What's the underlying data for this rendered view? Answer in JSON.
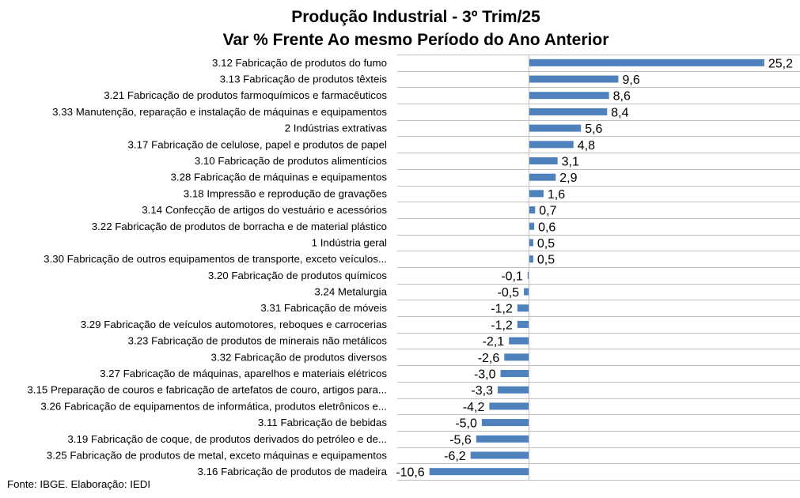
{
  "chart_data": {
    "type": "bar",
    "orientation": "horizontal",
    "title": "Produção Industrial - 3º Trim/25",
    "subtitle": "Var % Frente Ao mesmo Período do Ano Anterior",
    "xlabel": "",
    "ylabel": "",
    "xlim": [
      -10.6,
      25.2
    ],
    "grid": "horizontal category separators",
    "legend": "none",
    "bar_color": "#4F81BD",
    "categories": [
      "3.12 Fabricação de produtos do fumo",
      "3.13 Fabricação de produtos têxteis",
      "3.21 Fabricação de produtos farmoquímicos e farmacêuticos",
      "3.33 Manutenção, reparação e instalação de máquinas e equipamentos",
      "2 Indústrias extrativas",
      "3.17 Fabricação de celulose, papel e produtos de papel",
      "3.10 Fabricação de produtos alimentícios",
      "3.28 Fabricação de máquinas e equipamentos",
      "3.18 Impressão e reprodução de gravações",
      "3.14 Confecção de artigos do vestuário e acessórios",
      "3.22 Fabricação de produtos de borracha e de material plástico",
      "1 Indústria geral",
      "3.30 Fabricação de outros equipamentos de transporte, exceto veículos...",
      "3.20 Fabricação de produtos químicos",
      "3.24 Metalurgia",
      "3.31 Fabricação de móveis",
      "3.29 Fabricação de veículos automotores, reboques e carrocerias",
      "3.23 Fabricação de produtos de minerais não metálicos",
      "3.32 Fabricação de produtos diversos",
      "3.27 Fabricação de máquinas, aparelhos e materiais elétricos",
      "3.15 Preparação de couros e fabricação de artefatos de couro, artigos para...",
      "3.26 Fabricação de equipamentos de informática, produtos eletrônicos e...",
      "3.11 Fabricação de bebidas",
      "3.19 Fabricação de coque, de produtos derivados do petróleo e de...",
      "3.25 Fabricação de produtos de metal, exceto máquinas e equipamentos",
      "3.16 Fabricação de produtos de madeira"
    ],
    "values": [
      25.2,
      9.6,
      8.6,
      8.4,
      5.6,
      4.8,
      3.1,
      2.9,
      1.6,
      0.7,
      0.6,
      0.5,
      0.5,
      -0.1,
      -0.5,
      -1.2,
      -1.2,
      -2.1,
      -2.6,
      -3.0,
      -3.3,
      -4.2,
      -5.0,
      -5.6,
      -6.2,
      -10.6
    ],
    "value_labels": [
      "25,2",
      "9,6",
      "8,6",
      "8,4",
      "5,6",
      "4,8",
      "3,1",
      "2,9",
      "1,6",
      "0,7",
      "0,6",
      "0,5",
      "0,5",
      "-0,1",
      "-0,5",
      "-1,2",
      "-1,2",
      "-2,1",
      "-2,6",
      "-3,0",
      "-3,3",
      "-4,2",
      "-5,0",
      "-5,6",
      "-6,2",
      "-10,6"
    ]
  },
  "source_note": "Fonte: IBGE. Elaboração: IEDI"
}
